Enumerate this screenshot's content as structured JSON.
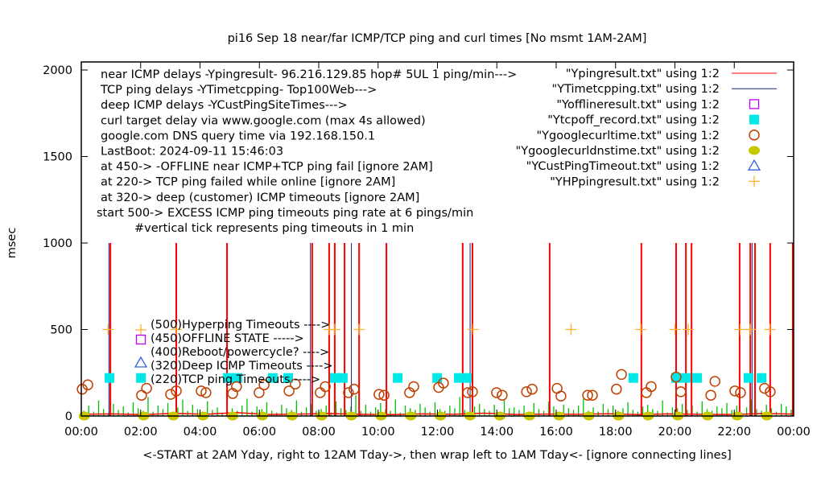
{
  "chart_data": {
    "type": "scatter",
    "title": "pi16 Sep 18  near/far ICMP/TCP ping and curl times [No msmt 1AM-2AM]",
    "xlabel": "<-START at 2AM Yday, right to 12AM Tday->, then wrap left to 1AM Tday<- [ignore connecting lines]",
    "ylabel": "msec",
    "xlim": [
      0,
      24
    ],
    "ylim": [
      0,
      2000
    ],
    "yticks": [
      0,
      500,
      1000,
      1500,
      2000
    ],
    "ytick_labels": [
      "0",
      "500",
      "1000",
      "1500",
      "2000"
    ],
    "xticks": [
      0,
      2,
      4,
      6,
      8,
      10,
      12,
      14,
      16,
      18,
      20,
      22,
      24
    ],
    "xtick_labels": [
      "00:00",
      "02:00",
      "04:00",
      "06:00",
      "08:00",
      "10:00",
      "12:00",
      "14:00",
      "16:00",
      "18:00",
      "20:00",
      "22:00",
      "00:00"
    ],
    "grid": false,
    "legend_position": "top-right",
    "annotations_top": [
      "near ICMP delays -Ypingresult- 96.216.129.85 hop# 5UL 1 ping/min--->",
      "TCP ping delays -YTimetcpping- Top100Web--->",
      "deep ICMP delays -YCustPingSiteTimes--->",
      "curl target delay via www.google.com (max 4s allowed)",
      "google.com DNS query time via 192.168.150.1",
      "LastBoot: 2024-09-11 15:46:03",
      "at 450-> -OFFLINE near ICMP+TCP ping fail [ignore 2AM]",
      "at 220-> TCP ping failed while online [ignore 2AM]",
      "at 320-> deep (customer) ICMP timeouts [ignore 2AM]",
      "start 500-> EXCESS ICMP ping timeouts ping rate at 6 pings/min",
      "#vertical tick represents ping timeouts in 1 min"
    ],
    "annotations_bottom": [
      "(500)Hyperping Timeouts ---->",
      "(450)OFFLINE STATE ----->",
      "(400)Reboot/powercycle? ---->",
      "(320)Deep ICMP Timeouts ---->",
      "(220)TCP ping Timeouts ---->"
    ],
    "series": [
      {
        "name": "\"Ypingresult.txt\" using 1:2",
        "style": "line",
        "color": "#ff0000",
        "spikes_hours": [
          0.98,
          3.2,
          4.91,
          7.78,
          8.35,
          8.54,
          8.87,
          9.36,
          10.28,
          12.85,
          13.18,
          15.78,
          18.87,
          20.04,
          20.37,
          20.56,
          22.18,
          22.54,
          22.7,
          23.21,
          23.97
        ],
        "spike_value": 1000,
        "baseline": [
          10,
          12,
          8,
          15,
          10,
          20,
          9,
          11,
          14,
          10,
          8,
          12,
          10,
          16,
          9,
          11,
          10,
          13,
          8,
          12,
          10,
          9,
          14,
          11
        ]
      },
      {
        "name": "\"YTimetcpping.txt\" using 1:2",
        "style": "line",
        "color": "#1a237e",
        "spikes_hours": [
          0.93,
          7.72,
          9.1,
          13.1,
          22.6
        ],
        "spike_value": 1000,
        "noise": [
          30,
          60,
          25,
          90,
          40,
          15,
          70,
          35,
          55,
          20,
          80,
          45,
          30,
          110,
          25,
          60,
          40,
          75,
          20,
          50,
          95,
          30,
          65,
          40,
          25,
          85,
          35,
          50,
          20,
          70,
          45,
          30,
          60,
          100,
          25,
          55,
          40,
          80,
          30,
          20,
          65,
          45,
          35,
          90,
          25,
          50,
          70,
          30,
          40,
          60,
          20,
          85,
          45,
          35,
          55,
          120,
          30,
          65,
          25,
          50,
          75,
          40,
          30,
          95,
          20,
          60,
          45,
          35,
          70,
          50,
          25,
          80,
          40,
          30,
          60,
          45,
          110,
          35,
          25,
          55,
          70,
          40,
          30,
          65,
          20,
          90,
          45,
          50,
          35,
          60,
          25,
          75,
          40,
          30,
          85,
          55,
          20,
          65,
          45,
          35,
          60,
          100,
          30,
          50,
          25,
          70,
          40,
          60,
          30,
          45,
          80,
          35,
          25,
          55,
          65,
          40,
          30,
          90,
          20,
          50,
          45,
          70,
          35,
          60,
          25,
          85,
          40,
          30,
          55,
          45,
          75,
          35,
          60,
          20,
          50,
          95,
          40,
          30,
          65,
          45,
          25,
          70,
          55,
          35
        ]
      },
      {
        "name": "\"Yofflineresult.txt\" using 1:2",
        "style": "open-square",
        "color": "#c000ff",
        "points": []
      },
      {
        "name": "\"Ytcpoff_record.txt\" using 1:2",
        "style": "filled-square",
        "color": "#00e8e8",
        "value": 220,
        "x_hours": [
          0.95,
          2.01,
          4.94,
          5.26,
          6.45,
          6.97,
          8.54,
          8.81,
          10.66,
          11.99,
          12.72,
          12.99,
          18.6,
          20.04,
          20.37,
          20.75,
          22.48,
          22.92
        ]
      },
      {
        "name": "\"Ygooglecurltime.txt\" using 1:2",
        "style": "open-circle",
        "color": "#c04000",
        "points": [
          [
            0.03,
            155
          ],
          [
            0.22,
            180
          ],
          [
            2.03,
            120
          ],
          [
            2.2,
            160
          ],
          [
            3.01,
            125
          ],
          [
            3.2,
            145
          ],
          [
            4.04,
            145
          ],
          [
            4.2,
            135
          ],
          [
            5.1,
            130
          ],
          [
            5.23,
            170
          ],
          [
            5.99,
            135
          ],
          [
            6.16,
            180
          ],
          [
            7.0,
            145
          ],
          [
            7.21,
            185
          ],
          [
            8.05,
            135
          ],
          [
            8.22,
            170
          ],
          [
            9.0,
            135
          ],
          [
            9.19,
            155
          ],
          [
            10.03,
            125
          ],
          [
            10.2,
            120
          ],
          [
            11.06,
            135
          ],
          [
            11.2,
            170
          ],
          [
            12.04,
            165
          ],
          [
            12.2,
            190
          ],
          [
            13.02,
            135
          ],
          [
            13.18,
            140
          ],
          [
            13.99,
            135
          ],
          [
            14.18,
            120
          ],
          [
            15.0,
            140
          ],
          [
            15.19,
            155
          ],
          [
            16.03,
            160
          ],
          [
            16.16,
            115
          ],
          [
            17.06,
            120
          ],
          [
            17.22,
            120
          ],
          [
            18.03,
            155
          ],
          [
            18.2,
            240
          ],
          [
            19.04,
            135
          ],
          [
            19.2,
            170
          ],
          [
            20.04,
            225
          ],
          [
            20.2,
            140
          ],
          [
            21.21,
            120
          ],
          [
            21.35,
            200
          ],
          [
            22.02,
            145
          ],
          [
            22.21,
            135
          ],
          [
            23.02,
            160
          ],
          [
            23.21,
            140
          ]
        ]
      },
      {
        "name": "\"Ygooglecurldnstime.txt\" using 1:2",
        "style": "filled-circle",
        "color": "#c8c800",
        "value": 0,
        "x_hours": [
          0.1,
          2.1,
          3.1,
          4.1,
          5.1,
          6.1,
          7.1,
          8.1,
          9.1,
          10.1,
          11.1,
          12.1,
          13.1,
          14.1,
          15.1,
          16.1,
          17.1,
          18.1,
          19.1,
          20.1,
          21.1,
          22.1,
          23.1
        ]
      },
      {
        "name": "\"YCustPingTimeout.txt\" using 1:2",
        "style": "open-triangle",
        "color": "#3060e0",
        "points": []
      },
      {
        "name": "\"YHPpingresult.txt\" using 1:2",
        "style": "plus",
        "color": "#ffb030",
        "value": 500,
        "x_hours": [
          0.9,
          3.2,
          8.35,
          8.54,
          9.36,
          13.2,
          16.5,
          18.85,
          20.0,
          20.45,
          22.2,
          22.54,
          23.2
        ]
      }
    ]
  }
}
